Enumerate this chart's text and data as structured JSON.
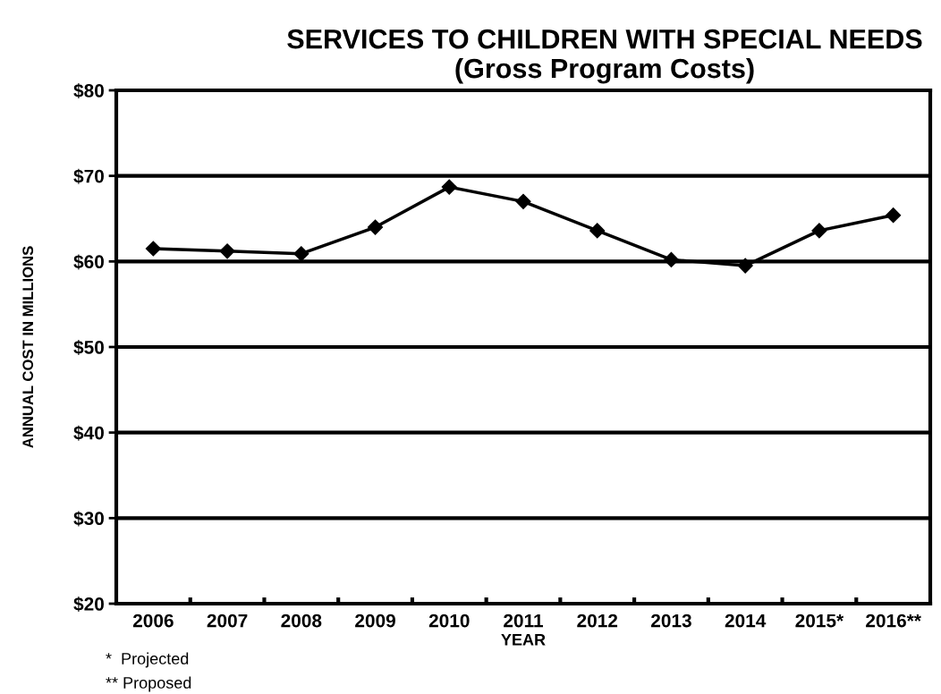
{
  "chart_data": {
    "type": "line",
    "title": "SERVICES TO CHILDREN WITH SPECIAL NEEDS\n(Gross Program Costs)",
    "xlabel": "YEAR",
    "ylabel": "ANNUAL COST IN MILLIONS",
    "categories": [
      "2006",
      "2007",
      "2008",
      "2009",
      "2010",
      "2011",
      "2012",
      "2013",
      "2014",
      "2015*",
      "2016**"
    ],
    "series": [
      {
        "color": "#000000",
        "values": [
          61.5,
          61.2,
          60.9,
          64.0,
          68.7,
          67.0,
          63.6,
          60.2,
          59.5,
          63.6,
          65.4
        ]
      }
    ],
    "ylim": [
      20,
      80
    ],
    "yticks": [
      {
        "value": 20,
        "label": "$20"
      },
      {
        "value": 30,
        "label": "$30"
      },
      {
        "value": 40,
        "label": "$40"
      },
      {
        "value": 50,
        "label": "$50"
      },
      {
        "value": 60,
        "label": "$60"
      },
      {
        "value": 70,
        "label": "$70"
      },
      {
        "value": 80,
        "label": "$80"
      }
    ],
    "grid": "y",
    "marker": "diamond",
    "line_style": "solid",
    "legend": false,
    "annotations": [
      "*  Projected",
      "** Proposed"
    ]
  }
}
